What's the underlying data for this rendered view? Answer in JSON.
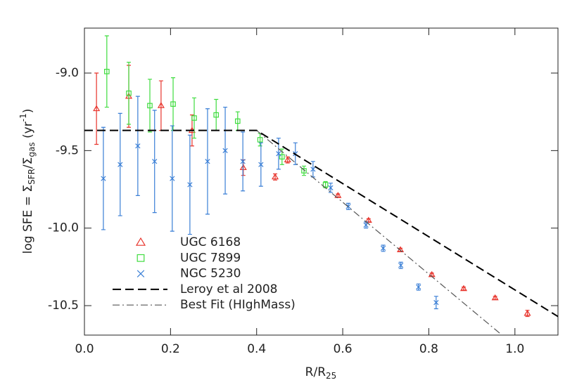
{
  "chart_data": {
    "type": "scatter",
    "x_label": [
      "R/R",
      "25"
    ],
    "y_label": [
      "log SFE = Σ",
      "SFR",
      "/Σ",
      "gas",
      " (yr",
      "-1",
      ")"
    ],
    "xlim": [
      0,
      1.1
    ],
    "ylim": [
      -10.69,
      -8.71
    ],
    "xticks": [
      {
        "value": 0,
        "label": "0.0"
      },
      0.2,
      0.4,
      0.6,
      0.8,
      {
        "value": 1,
        "label": "1.0"
      }
    ],
    "yticks": [
      {
        "value": -9,
        "label": "-9.0"
      },
      -9.5,
      {
        "value": -10,
        "label": "-10.0"
      },
      -10.5
    ],
    "series": [
      {
        "name": "UGC 6168",
        "color": "#e8342c",
        "marker": "triangle",
        "x": [
          0.028,
          0.103,
          0.178,
          0.25,
          0.369,
          0.443,
          0.472,
          0.589,
          0.66,
          0.734,
          0.807,
          0.881,
          0.954,
          1.029
        ],
        "values": [
          -9.23,
          -9.15,
          -9.21,
          -9.37,
          -9.61,
          -9.67,
          -9.56,
          -9.79,
          -9.95,
          -10.14,
          -10.3,
          -10.39,
          -10.45,
          -10.55
        ],
        "errors": [
          0.23,
          0.2,
          0.16,
          0.1,
          0.05,
          0.02,
          0.02,
          0.01,
          0.01,
          0.01,
          0.01,
          0.01,
          0.01,
          0.02
        ]
      },
      {
        "name": "UGC 7899",
        "color": "#3fdc3f",
        "marker": "square",
        "x": [
          0.052,
          0.103,
          0.152,
          0.206,
          0.255,
          0.306,
          0.356,
          0.408,
          0.459,
          0.51,
          0.56
        ],
        "values": [
          -8.99,
          -9.13,
          -9.21,
          -9.2,
          -9.29,
          -9.27,
          -9.31,
          -9.43,
          -9.54,
          -9.63,
          -9.72
        ],
        "errors": [
          0.23,
          0.2,
          0.17,
          0.17,
          0.13,
          0.1,
          0.06,
          0.04,
          0.05,
          0.03,
          0.02
        ]
      },
      {
        "name": "NGC 5230",
        "color": "#3a7fd6",
        "marker": "cross",
        "x": [
          0.044,
          0.083,
          0.124,
          0.163,
          0.204,
          0.245,
          0.286,
          0.327,
          0.368,
          0.41,
          0.451,
          0.49,
          0.531,
          0.572,
          0.613,
          0.654,
          0.694,
          0.735,
          0.776,
          0.817
        ],
        "values": [
          -9.68,
          -9.59,
          -9.47,
          -9.57,
          -9.68,
          -9.72,
          -9.57,
          -9.5,
          -9.57,
          -9.59,
          -9.52,
          -9.52,
          -9.62,
          -9.74,
          -9.86,
          -9.98,
          -10.13,
          -10.24,
          -10.38,
          -10.48
        ],
        "errors": [
          0.33,
          0.33,
          0.32,
          0.33,
          0.34,
          0.32,
          0.34,
          0.28,
          0.19,
          0.14,
          0.1,
          0.07,
          0.05,
          0.03,
          0.02,
          0.02,
          0.02,
          0.02,
          0.02,
          0.04
        ]
      },
      {
        "name": "Leroy et al 2008",
        "color": "#000000",
        "marker": "dashed",
        "x": [
          0,
          0.4,
          1.1
        ],
        "values": [
          -9.37,
          -9.37,
          -10.57
        ]
      },
      {
        "name": "Best Fit (HIghMass)",
        "color": "#555555",
        "marker": "dashdot",
        "x": [
          0.4,
          0.97
        ],
        "values": [
          -9.37,
          -10.69
        ]
      }
    ]
  }
}
